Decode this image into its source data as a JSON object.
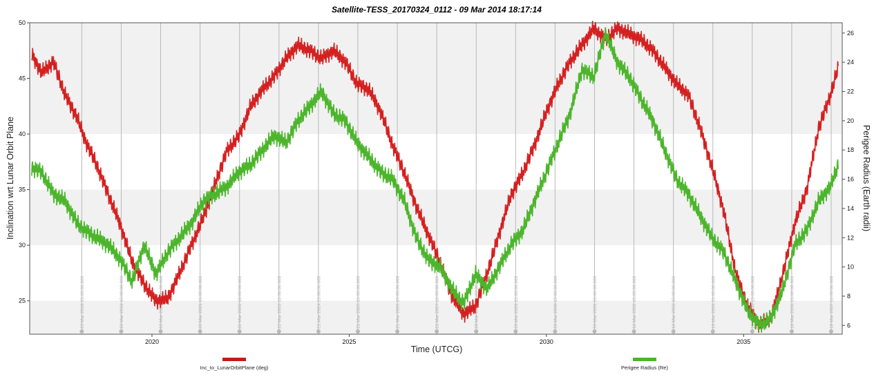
{
  "chart_data": {
    "type": "line",
    "title": "Satellite-TESS_20170324_0112 - 09 Mar 2014 18:17:14",
    "xlabel": "Time (UTCG)",
    "ylabel_left": "Inclination wrt Lunar Orbit Plane",
    "ylabel_right": "Perigee Radius (Earth radii)",
    "xlim": [
      2016.9,
      2037.5
    ],
    "ylim_left": [
      22,
      50
    ],
    "ylim_right": [
      5.4,
      26.7
    ],
    "x_ticks": [
      "2020",
      "2025",
      "2030",
      "2035"
    ],
    "y_ticks_left": [
      "25",
      "30",
      "35",
      "40",
      "45",
      "50"
    ],
    "y_ticks_right": [
      "6",
      "8",
      "10",
      "12",
      "14",
      "16",
      "18",
      "20",
      "22",
      "24",
      "26"
    ],
    "grid": "alternating horizontal bands, vertical lines at 23 Mar epochs",
    "legend_position": "bottom",
    "epoch_markers": [
      {
        "x": 2018.22,
        "label": "23 Mar 2018 15:00:00.000"
      },
      {
        "x": 2019.22,
        "label": "23 Mar 2019 15:00:00.000"
      },
      {
        "x": 2020.22,
        "label": "22 Mar 2020 15:00:00.000"
      },
      {
        "x": 2021.22,
        "label": "22 Mar 2021 15:00:00.000"
      },
      {
        "x": 2022.22,
        "label": "22 Mar 2022 15:00:00.000"
      },
      {
        "x": 2023.22,
        "label": "22 Mar 2023 15:00:00.000"
      },
      {
        "x": 2024.22,
        "label": "21 Mar 2024 15:00:00.000"
      },
      {
        "x": 2025.22,
        "label": "21 Mar 2025 15:00:00.000"
      },
      {
        "x": 2026.22,
        "label": "21 Mar 2026 15:00:00.000"
      },
      {
        "x": 2027.22,
        "label": "21 Mar 2027 15:00:00.000"
      },
      {
        "x": 2028.22,
        "label": "20 Mar 2028 15:00:00.000"
      },
      {
        "x": 2029.22,
        "label": "20 Mar 2029 15:00:00.000"
      },
      {
        "x": 2030.22,
        "label": "20 Mar 2030 15:00:00.000"
      },
      {
        "x": 2031.22,
        "label": "20 Mar 2031 15:00:00.000"
      },
      {
        "x": 2032.22,
        "label": "19 Mar 2032 15:00:00.000"
      },
      {
        "x": 2033.22,
        "label": "19 Mar 2033 15:00:00.000"
      },
      {
        "x": 2034.22,
        "label": "19 Mar 2034 15:00:00.000"
      },
      {
        "x": 2035.22,
        "label": "19 Mar 2035 15:00:00.000"
      },
      {
        "x": 2036.22,
        "label": "18 Mar 2036 15:00:00.000"
      },
      {
        "x": 2037.22,
        "label": "18 Mar 2037 15:00:00.000"
      }
    ],
    "series": [
      {
        "name": "Inc_to_LunarOrbitPlane (deg)",
        "axis": "left",
        "color": "#d42020",
        "x": [
          2016.95,
          2017.2,
          2017.5,
          2017.8,
          2018.1,
          2018.3,
          2018.6,
          2018.9,
          2019.2,
          2019.5,
          2019.8,
          2020.1,
          2020.4,
          2020.7,
          2021.0,
          2021.3,
          2021.6,
          2021.9,
          2022.2,
          2022.5,
          2022.8,
          2023.1,
          2023.4,
          2023.7,
          2024.0,
          2024.3,
          2024.6,
          2024.9,
          2025.2,
          2025.5,
          2025.8,
          2026.1,
          2026.4,
          2026.7,
          2027.0,
          2027.3,
          2027.6,
          2027.9,
          2028.2,
          2028.5,
          2028.8,
          2029.1,
          2029.4,
          2029.7,
          2030.0,
          2030.3,
          2030.6,
          2030.9,
          2031.2,
          2031.5,
          2031.8,
          2032.1,
          2032.4,
          2032.7,
          2033.0,
          2033.3,
          2033.6,
          2033.9,
          2034.2,
          2034.5,
          2034.8,
          2035.1,
          2035.4,
          2035.7,
          2036.0,
          2036.3,
          2036.6,
          2036.9,
          2037.2,
          2037.4
        ],
        "values": [
          47.2,
          45.5,
          46.5,
          43.5,
          41.5,
          39.5,
          37.2,
          34.5,
          31.8,
          28.5,
          26.5,
          25.0,
          25.2,
          27.5,
          30.0,
          32.5,
          35.5,
          38.5,
          39.8,
          42.5,
          44.0,
          45.2,
          46.8,
          48.0,
          47.5,
          46.8,
          47.5,
          46.5,
          44.5,
          44.0,
          42.0,
          39.0,
          36.5,
          33.5,
          31.0,
          28.5,
          25.5,
          23.8,
          24.5,
          27.5,
          31.0,
          34.5,
          36.5,
          39.0,
          42.0,
          44.5,
          46.5,
          48.0,
          49.5,
          48.5,
          49.5,
          49.0,
          48.5,
          47.5,
          46.0,
          44.5,
          43.5,
          40.5,
          37.0,
          33.0,
          27.5,
          24.5,
          22.8,
          23.5,
          27.5,
          32.0,
          35.0,
          40.5,
          43.5,
          46.0
        ]
      },
      {
        "name": "Perigee Radius (Re)",
        "axis": "right",
        "color": "#4cb52c",
        "x": [
          2016.95,
          2017.2,
          2017.5,
          2017.8,
          2018.1,
          2018.3,
          2018.6,
          2018.9,
          2019.2,
          2019.5,
          2019.8,
          2020.1,
          2020.4,
          2020.7,
          2021.0,
          2021.3,
          2021.6,
          2021.9,
          2022.2,
          2022.5,
          2022.8,
          2023.1,
          2023.4,
          2023.7,
          2024.0,
          2024.3,
          2024.6,
          2024.9,
          2025.2,
          2025.5,
          2025.8,
          2026.1,
          2026.4,
          2026.7,
          2027.0,
          2027.3,
          2027.6,
          2027.9,
          2028.2,
          2028.5,
          2028.8,
          2029.1,
          2029.4,
          2029.7,
          2030.0,
          2030.3,
          2030.6,
          2030.9,
          2031.2,
          2031.5,
          2031.8,
          2032.1,
          2032.4,
          2032.7,
          2033.0,
          2033.3,
          2033.6,
          2033.9,
          2034.2,
          2034.5,
          2034.8,
          2035.1,
          2035.4,
          2035.7,
          2036.0,
          2036.3,
          2036.6,
          2036.9,
          2037.2,
          2037.4
        ],
        "values": [
          16.8,
          16.5,
          15.0,
          14.5,
          13.0,
          12.5,
          12.0,
          11.5,
          10.5,
          9.0,
          11.5,
          9.5,
          11.0,
          12.0,
          13.0,
          14.5,
          15.0,
          15.5,
          16.5,
          17.0,
          18.0,
          19.0,
          18.5,
          20.0,
          21.0,
          22.0,
          20.5,
          20.0,
          18.5,
          17.5,
          16.5,
          16.0,
          14.5,
          12.0,
          10.5,
          10.0,
          8.5,
          7.5,
          9.5,
          8.5,
          10.0,
          11.5,
          12.5,
          14.5,
          16.5,
          18.5,
          20.5,
          23.5,
          23.0,
          26.0,
          24.0,
          23.0,
          21.5,
          20.0,
          18.0,
          16.0,
          15.0,
          13.5,
          12.0,
          11.0,
          9.0,
          7.0,
          6.0,
          6.5,
          8.5,
          11.5,
          12.5,
          14.5,
          15.5,
          17.0
        ]
      }
    ]
  }
}
